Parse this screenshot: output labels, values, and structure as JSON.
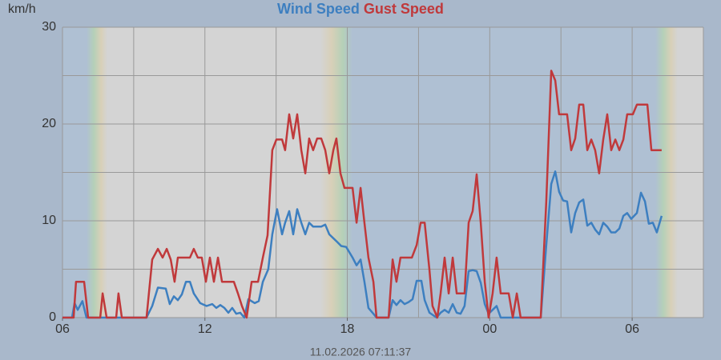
{
  "chart_data": {
    "type": "line",
    "y_label": "km/h",
    "footer": "11.02.2026 07:11:37",
    "xlim": [
      0,
      27
    ],
    "xticks": [
      {
        "value": 0,
        "label": "06"
      },
      {
        "value": 6,
        "label": "12"
      },
      {
        "value": 12,
        "label": "18"
      },
      {
        "value": 18,
        "label": "00"
      },
      {
        "value": 24,
        "label": "06"
      }
    ],
    "xgrid": [
      0,
      3,
      6,
      9,
      12,
      15,
      18,
      21,
      24,
      27
    ],
    "ylim": [
      0,
      30
    ],
    "yticks": [
      0,
      10,
      20,
      30
    ],
    "ygrid": [
      0,
      5,
      10,
      15,
      20,
      25,
      30
    ],
    "series": [
      {
        "name": "Wind Speed",
        "color": "#3d7fc0",
        "x": [
          0,
          0.4,
          0.51,
          0.64,
          0.84,
          1.01,
          3.54,
          3.78,
          4.02,
          4.35,
          4.52,
          4.69,
          4.86,
          5.03,
          5.2,
          5.37,
          5.53,
          5.8,
          6.07,
          6.31,
          6.48,
          6.65,
          6.82,
          6.99,
          7.15,
          7.32,
          7.49,
          7.66,
          7.83,
          8.1,
          8.27,
          8.44,
          8.67,
          8.84,
          9.04,
          9.25,
          9.38,
          9.55,
          9.72,
          9.89,
          10.06,
          10.23,
          10.39,
          10.56,
          10.9,
          11.07,
          11.24,
          11.41,
          11.58,
          11.74,
          11.95,
          12.22,
          12.39,
          12.56,
          12.72,
          12.89,
          13.1,
          13.23,
          13.74,
          13.91,
          14.07,
          14.24,
          14.41,
          14.58,
          14.75,
          14.92,
          15.12,
          15.26,
          15.46,
          15.76,
          15.93,
          16.1,
          16.27,
          16.44,
          16.61,
          16.77,
          16.94,
          17.11,
          17.28,
          17.45,
          17.62,
          17.79,
          17.95,
          18.12,
          18.29,
          18.46,
          18.97,
          20.15,
          20.38,
          20.59,
          20.76,
          20.92,
          21.09,
          21.26,
          21.43,
          21.6,
          21.77,
          21.94,
          22.11,
          22.28,
          22.44,
          22.61,
          22.78,
          22.95,
          23.12,
          23.29,
          23.46,
          23.63,
          23.79,
          23.96,
          24.2,
          24.37,
          24.54,
          24.7,
          24.87,
          25.04,
          25.24
        ],
        "values": [
          0,
          0,
          1.5,
          0.8,
          1.7,
          0,
          0,
          1.2,
          3.1,
          3,
          1.4,
          2.2,
          1.8,
          2.4,
          3.7,
          3.7,
          2.5,
          1.5,
          1.2,
          1.4,
          1.0,
          1.3,
          1.0,
          0.5,
          1.0,
          0.4,
          0.5,
          0,
          1.9,
          1.5,
          1.7,
          3.7,
          5,
          8.6,
          11.2,
          8.6,
          9.8,
          11,
          8.6,
          11.2,
          9.8,
          8.6,
          9.8,
          9.4,
          9.4,
          9.6,
          8.6,
          8.2,
          7.8,
          7.4,
          7.3,
          6.2,
          5.4,
          6,
          3.7,
          1.0,
          0.4,
          0,
          0,
          1.8,
          1.3,
          1.8,
          1.4,
          1.6,
          1.9,
          3.8,
          3.8,
          1.8,
          0.5,
          0,
          0.5,
          0.8,
          0.5,
          1.4,
          0.5,
          0.4,
          1.2,
          4.8,
          4.9,
          4.8,
          3.6,
          1.4,
          0.4,
          0.8,
          1.2,
          0,
          0,
          0,
          7.5,
          13.8,
          15.1,
          13,
          12.1,
          12,
          8.8,
          10.8,
          11.9,
          12.2,
          9.5,
          9.8,
          9.1,
          8.6,
          9.8,
          9.4,
          8.8,
          8.8,
          9.2,
          10.5,
          10.8,
          10.2,
          10.8,
          12.9,
          12,
          9.7,
          9.8,
          8.8,
          10.5
        ]
      },
      {
        "name": "Gust Speed",
        "color": "#c0393b",
        "x": [
          0,
          0.47,
          0.57,
          0.91,
          1.08,
          1.59,
          1.69,
          1.86,
          2.26,
          2.36,
          2.5,
          3.54,
          3.78,
          4.02,
          4.22,
          4.39,
          4.56,
          4.72,
          4.86,
          5.37,
          5.53,
          5.7,
          5.87,
          6.04,
          6.21,
          6.38,
          6.55,
          6.72,
          7.22,
          7.39,
          7.56,
          7.76,
          7.97,
          8.24,
          8.44,
          8.64,
          8.84,
          9.01,
          9.25,
          9.38,
          9.55,
          9.72,
          9.89,
          10.06,
          10.23,
          10.39,
          10.56,
          10.73,
          10.9,
          11.07,
          11.24,
          11.41,
          11.54,
          11.71,
          11.88,
          12.22,
          12.39,
          12.56,
          12.72,
          12.89,
          13.1,
          13.23,
          13.74,
          13.91,
          14.07,
          14.24,
          14.72,
          14.92,
          15.09,
          15.26,
          15.46,
          15.59,
          15.79,
          15.93,
          16.1,
          16.27,
          16.44,
          16.61,
          16.94,
          17.11,
          17.28,
          17.45,
          17.62,
          17.79,
          17.95,
          18.12,
          18.29,
          18.46,
          18.8,
          18.97,
          19.14,
          19.3,
          20.15,
          20.38,
          20.59,
          20.76,
          20.92,
          21.26,
          21.43,
          21.6,
          21.77,
          21.94,
          22.11,
          22.28,
          22.44,
          22.61,
          22.78,
          22.95,
          23.12,
          23.29,
          23.46,
          23.63,
          23.79,
          24.03,
          24.2,
          24.64,
          24.81,
          25.24
        ],
        "values": [
          0,
          0,
          3.7,
          3.7,
          0,
          0,
          2.5,
          0,
          0,
          2.5,
          0,
          0,
          6,
          7.1,
          6.2,
          7.1,
          6,
          3.7,
          6.2,
          6.2,
          7.1,
          6.2,
          6.2,
          3.7,
          6.2,
          3.7,
          6.2,
          3.7,
          3.7,
          2.5,
          1.2,
          0,
          3.7,
          3.7,
          6.2,
          8.5,
          17.3,
          18.4,
          18.4,
          17.3,
          21,
          18.5,
          21,
          17.3,
          14.9,
          18.5,
          17.3,
          18.5,
          18.5,
          17.3,
          14.9,
          17.3,
          18.5,
          14.9,
          13.4,
          13.4,
          9.8,
          13.4,
          9.8,
          6.2,
          3.7,
          0,
          0,
          6,
          3.7,
          6.2,
          6.2,
          7.5,
          9.8,
          9.8,
          4.9,
          1.2,
          0,
          2.5,
          6.2,
          2.5,
          6.2,
          2.5,
          2.5,
          9.8,
          11,
          14.8,
          9.8,
          3.7,
          0,
          2.5,
          6.2,
          2.5,
          2.5,
          0,
          2.5,
          0,
          0,
          12,
          25.5,
          24.5,
          21,
          21,
          17.3,
          18.5,
          22,
          22,
          17.3,
          18.4,
          17.3,
          14.9,
          18.4,
          21,
          17.3,
          18.4,
          17.3,
          18.4,
          21,
          21,
          22,
          22,
          17.3,
          17.3
        ]
      }
    ]
  }
}
